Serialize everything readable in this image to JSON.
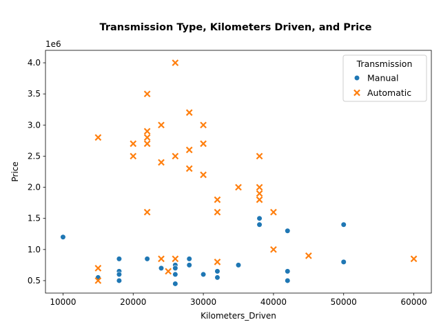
{
  "chart_data": {
    "type": "scatter",
    "title": "Transmission Type, Kilometers Driven, and Price",
    "xlabel": "Kilometers_Driven",
    "ylabel": "Price",
    "y_offset_label": "1e6",
    "xlim": [
      7500,
      62500
    ],
    "ylim": [
      0.3,
      4.2
    ],
    "x_ticks": [
      10000,
      20000,
      30000,
      40000,
      50000,
      60000
    ],
    "y_ticks": [
      0.5,
      1.0,
      1.5,
      2.0,
      2.5,
      3.0,
      3.5,
      4.0
    ],
    "x_tick_labels": [
      "10000",
      "20000",
      "30000",
      "40000",
      "50000",
      "60000"
    ],
    "y_tick_labels": [
      "0.5",
      "1.0",
      "1.5",
      "2.0",
      "2.5",
      "3.0",
      "3.5",
      "4.0"
    ],
    "grid": false,
    "legend": {
      "title": "Transmission",
      "position": "top-right"
    },
    "series": [
      {
        "name": "Manual",
        "marker": "circle",
        "color": "#1f77b4",
        "points": [
          {
            "x": 10000,
            "y": 1.2
          },
          {
            "x": 15000,
            "y": 0.55
          },
          {
            "x": 18000,
            "y": 0.85
          },
          {
            "x": 18000,
            "y": 0.65
          },
          {
            "x": 18000,
            "y": 0.6
          },
          {
            "x": 18000,
            "y": 0.5
          },
          {
            "x": 22000,
            "y": 0.85
          },
          {
            "x": 24000,
            "y": 0.7
          },
          {
            "x": 26000,
            "y": 0.75
          },
          {
            "x": 26000,
            "y": 0.7
          },
          {
            "x": 26000,
            "y": 0.6
          },
          {
            "x": 26000,
            "y": 0.45
          },
          {
            "x": 28000,
            "y": 0.85
          },
          {
            "x": 28000,
            "y": 0.75
          },
          {
            "x": 30000,
            "y": 0.6
          },
          {
            "x": 32000,
            "y": 0.65
          },
          {
            "x": 32000,
            "y": 0.55
          },
          {
            "x": 35000,
            "y": 0.75
          },
          {
            "x": 38000,
            "y": 1.5
          },
          {
            "x": 38000,
            "y": 1.4
          },
          {
            "x": 42000,
            "y": 1.3
          },
          {
            "x": 42000,
            "y": 0.65
          },
          {
            "x": 42000,
            "y": 0.5
          },
          {
            "x": 50000,
            "y": 1.4
          },
          {
            "x": 50000,
            "y": 0.8
          }
        ]
      },
      {
        "name": "Automatic",
        "marker": "x",
        "color": "#ff7f0e",
        "points": [
          {
            "x": 15000,
            "y": 2.8
          },
          {
            "x": 15000,
            "y": 0.7
          },
          {
            "x": 15000,
            "y": 0.5
          },
          {
            "x": 20000,
            "y": 2.7
          },
          {
            "x": 20000,
            "y": 2.5
          },
          {
            "x": 22000,
            "y": 3.5
          },
          {
            "x": 22000,
            "y": 2.9
          },
          {
            "x": 22000,
            "y": 2.8
          },
          {
            "x": 22000,
            "y": 2.7
          },
          {
            "x": 22000,
            "y": 1.6
          },
          {
            "x": 24000,
            "y": 3.0
          },
          {
            "x": 24000,
            "y": 2.4
          },
          {
            "x": 24000,
            "y": 0.85
          },
          {
            "x": 25000,
            "y": 0.65
          },
          {
            "x": 26000,
            "y": 4.0
          },
          {
            "x": 26000,
            "y": 2.5
          },
          {
            "x": 26000,
            "y": 0.85
          },
          {
            "x": 28000,
            "y": 3.2
          },
          {
            "x": 28000,
            "y": 2.6
          },
          {
            "x": 28000,
            "y": 2.3
          },
          {
            "x": 30000,
            "y": 3.0
          },
          {
            "x": 30000,
            "y": 2.7
          },
          {
            "x": 30000,
            "y": 2.2
          },
          {
            "x": 32000,
            "y": 1.8
          },
          {
            "x": 32000,
            "y": 1.6
          },
          {
            "x": 32000,
            "y": 0.8
          },
          {
            "x": 35000,
            "y": 2.0
          },
          {
            "x": 38000,
            "y": 2.5
          },
          {
            "x": 38000,
            "y": 2.0
          },
          {
            "x": 38000,
            "y": 1.9
          },
          {
            "x": 38000,
            "y": 1.8
          },
          {
            "x": 40000,
            "y": 1.6
          },
          {
            "x": 40000,
            "y": 1.0
          },
          {
            "x": 45000,
            "y": 0.9
          },
          {
            "x": 60000,
            "y": 0.85
          }
        ]
      }
    ]
  }
}
